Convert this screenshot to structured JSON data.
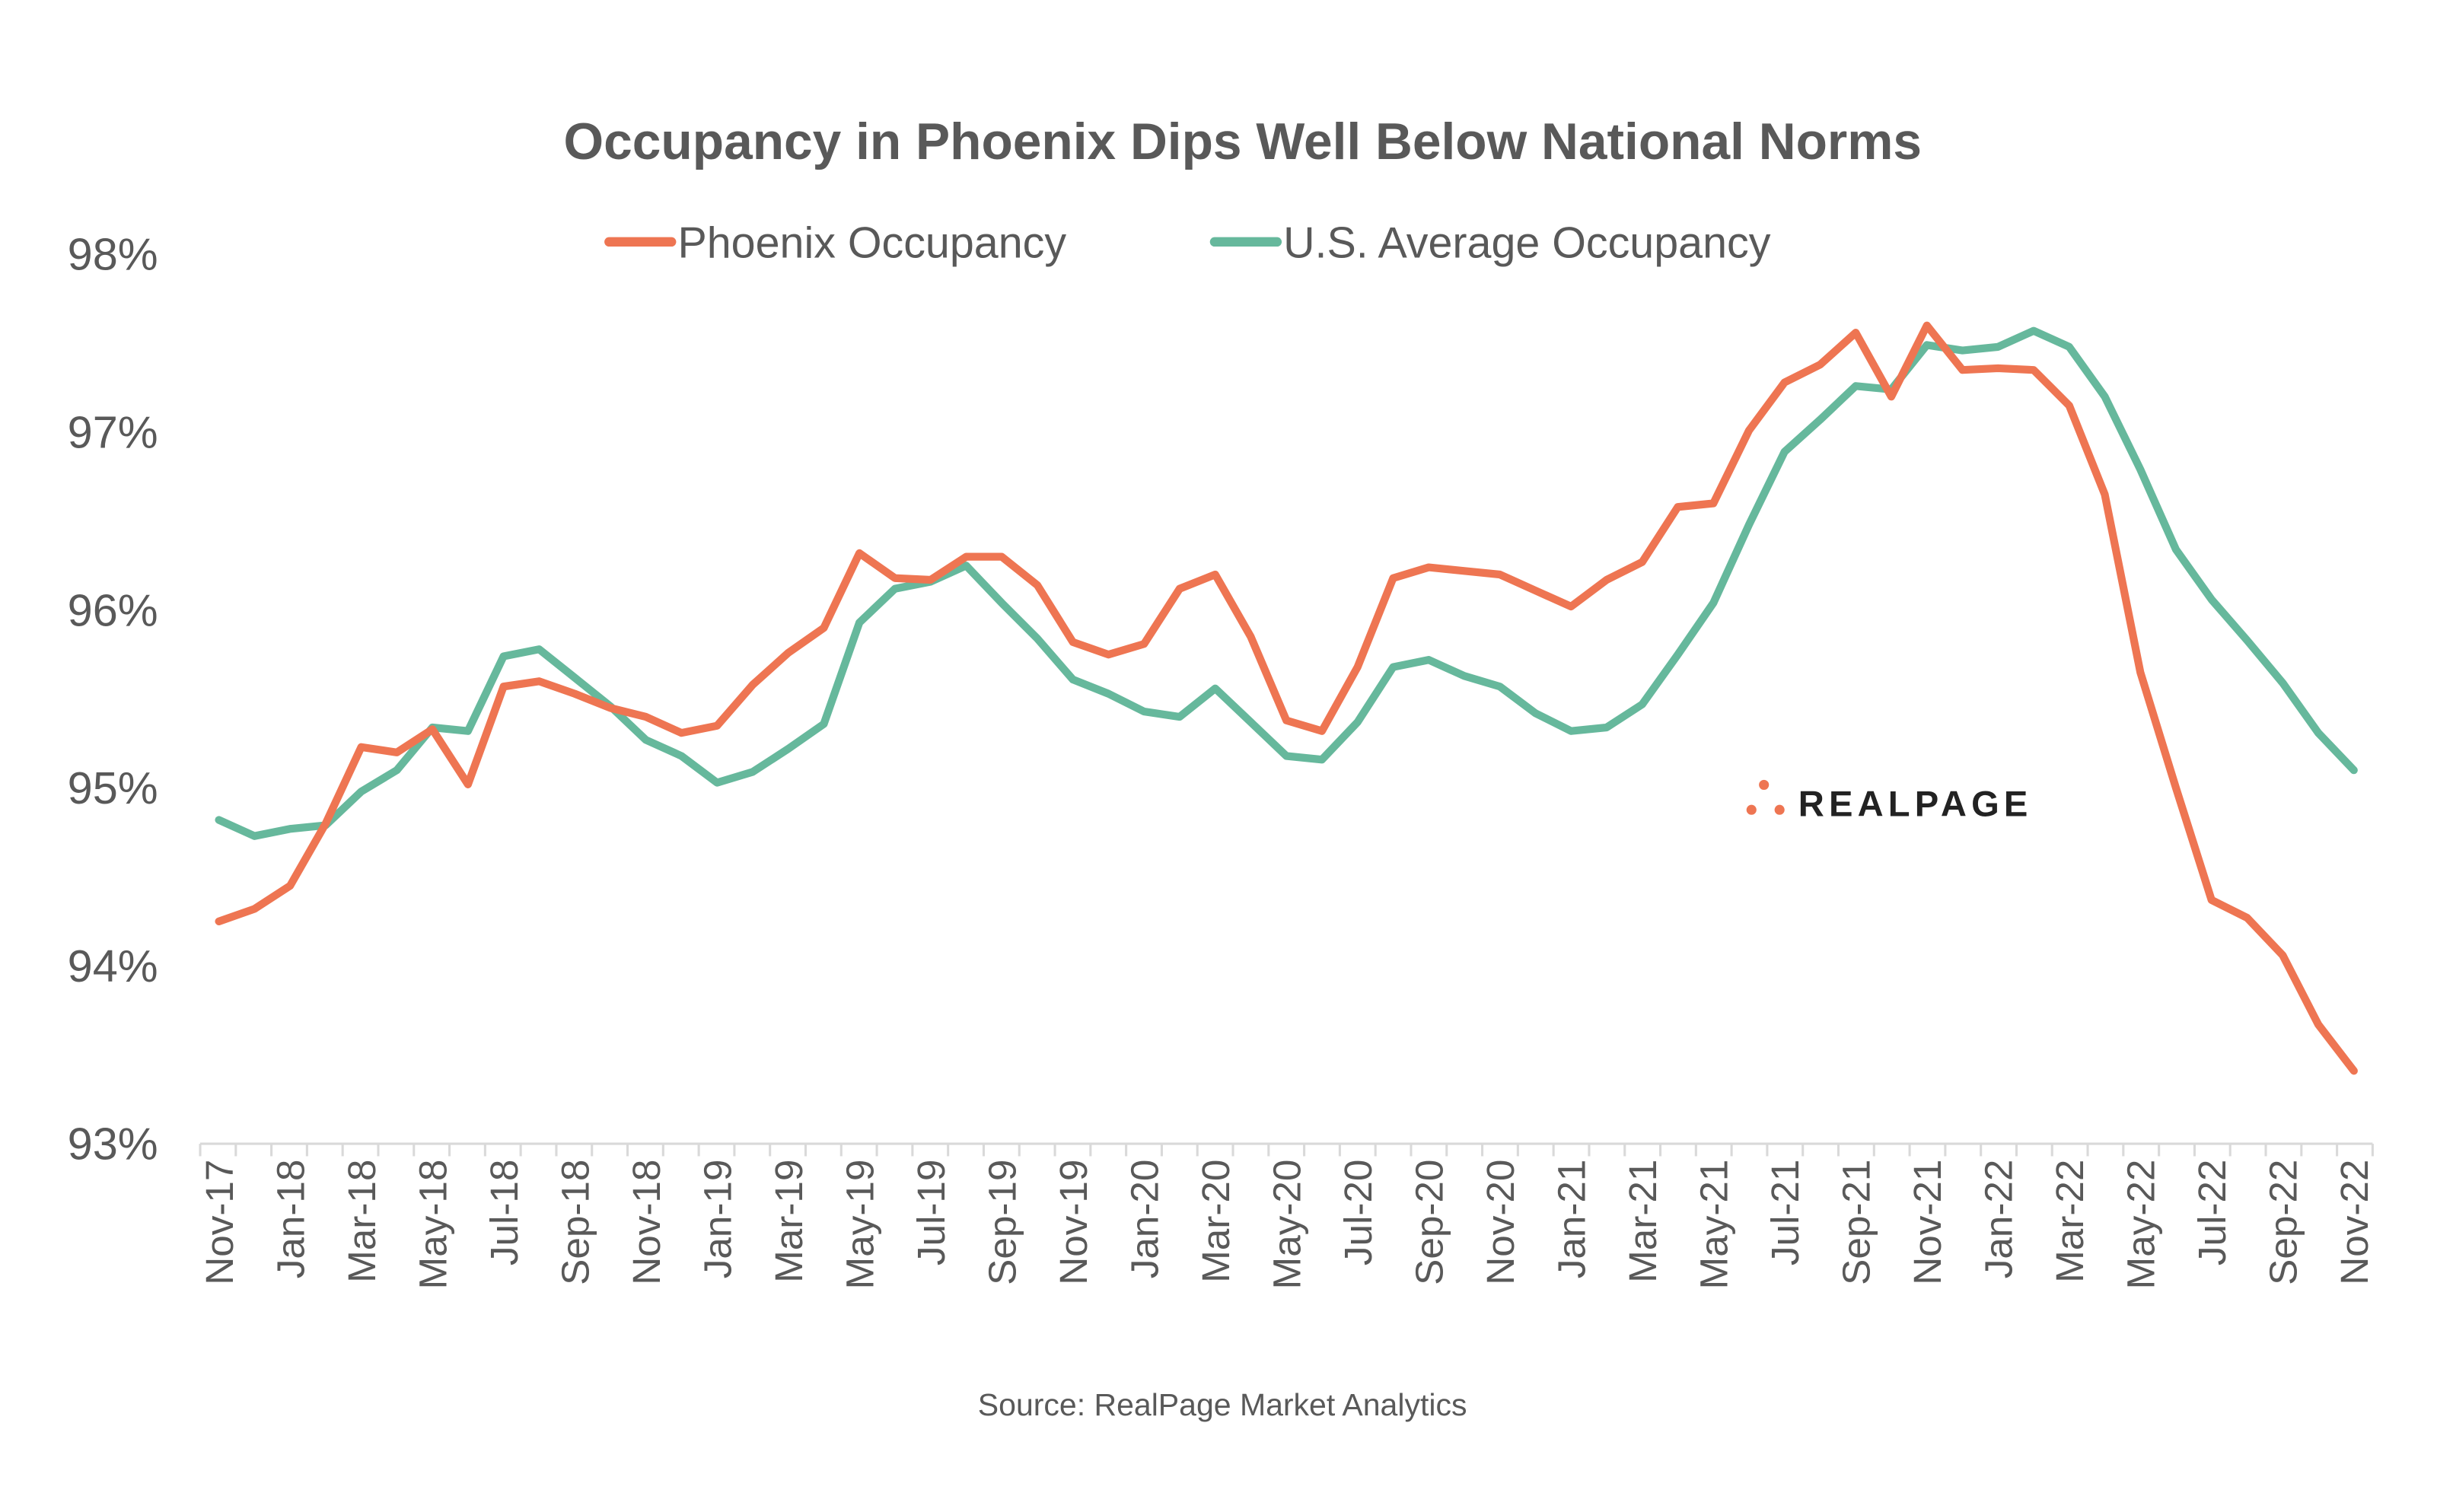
{
  "chart_data": {
    "type": "line",
    "title": "Occupancy in Phoenix Dips Well Below National Norms",
    "source": "Source: RealPage Market Analytics",
    "logo_text": "REALPAGE",
    "xlabel": "",
    "ylabel": "",
    "ylim": [
      93,
      98
    ],
    "yticks": [
      93,
      94,
      95,
      96,
      97,
      98
    ],
    "ytick_labels": [
      "93%",
      "94%",
      "95%",
      "96%",
      "97%",
      "98%"
    ],
    "grid": false,
    "legend_position": "top",
    "categories": [
      "Nov-17",
      "Dec-17",
      "Jan-18",
      "Feb-18",
      "Mar-18",
      "Apr-18",
      "May-18",
      "Jun-18",
      "Jul-18",
      "Aug-18",
      "Sep-18",
      "Oct-18",
      "Nov-18",
      "Dec-18",
      "Jan-19",
      "Feb-19",
      "Mar-19",
      "Apr-19",
      "May-19",
      "Jun-19",
      "Jul-19",
      "Aug-19",
      "Sep-19",
      "Oct-19",
      "Nov-19",
      "Dec-19",
      "Jan-20",
      "Feb-20",
      "Mar-20",
      "Apr-20",
      "May-20",
      "Jun-20",
      "Jul-20",
      "Aug-20",
      "Sep-20",
      "Oct-20",
      "Nov-20",
      "Dec-20",
      "Jan-21",
      "Feb-21",
      "Mar-21",
      "Apr-21",
      "May-21",
      "Jun-21",
      "Jul-21",
      "Aug-21",
      "Sep-21",
      "Oct-21",
      "Nov-21",
      "Dec-21",
      "Jan-22",
      "Feb-22",
      "Mar-22",
      "Apr-22",
      "May-22",
      "Jun-22",
      "Jul-22",
      "Aug-22",
      "Sep-22",
      "Oct-22",
      "Nov-22"
    ],
    "xtick_labels": [
      "Nov-17",
      "Jan-18",
      "Mar-18",
      "May-18",
      "Jul-18",
      "Sep-18",
      "Nov-18",
      "Jan-19",
      "Mar-19",
      "May-19",
      "Jul-19",
      "Sep-19",
      "Nov-19",
      "Jan-20",
      "Mar-20",
      "May-20",
      "Jul-20",
      "Sep-20",
      "Nov-20",
      "Jan-21",
      "Mar-21",
      "May-21",
      "Jul-21",
      "Sep-21",
      "Nov-21",
      "Jan-22",
      "Mar-22",
      "May-22",
      "Jul-22",
      "Sep-22",
      "Nov-22"
    ],
    "series": [
      {
        "name": "Phoenix Occupancy",
        "color": "#EE7552",
        "values": [
          94.25,
          94.32,
          94.45,
          94.8,
          95.23,
          95.2,
          95.33,
          95.02,
          95.57,
          95.6,
          95.53,
          95.45,
          95.4,
          95.31,
          95.35,
          95.58,
          95.76,
          95.9,
          96.32,
          96.18,
          96.17,
          96.3,
          96.3,
          96.14,
          95.82,
          95.75,
          95.81,
          96.12,
          96.2,
          95.85,
          95.38,
          95.32,
          95.68,
          96.18,
          96.24,
          96.22,
          96.2,
          96.11,
          96.02,
          96.17,
          96.27,
          96.58,
          96.6,
          97.01,
          97.28,
          97.38,
          97.56,
          97.2,
          97.6,
          97.35,
          97.36,
          97.35,
          97.15,
          96.65,
          95.65,
          95.0,
          94.37,
          94.27,
          94.06,
          93.67,
          93.41
        ]
      },
      {
        "name": "U.S. Average Occupancy",
        "color": "#66B89C",
        "values": [
          94.82,
          94.73,
          94.77,
          94.79,
          94.98,
          95.1,
          95.34,
          95.32,
          95.74,
          95.78,
          95.62,
          95.46,
          95.27,
          95.18,
          95.03,
          95.09,
          95.22,
          95.36,
          95.93,
          96.12,
          96.16,
          96.25,
          96.04,
          95.84,
          95.61,
          95.53,
          95.43,
          95.4,
          95.56,
          95.37,
          95.18,
          95.16,
          95.37,
          95.68,
          95.72,
          95.63,
          95.57,
          95.42,
          95.32,
          95.34,
          95.47,
          95.75,
          96.04,
          96.48,
          96.89,
          97.07,
          97.26,
          97.24,
          97.49,
          97.46,
          97.48,
          97.57,
          97.48,
          97.2,
          96.79,
          96.34,
          96.06,
          95.83,
          95.59,
          95.31,
          95.1
        ]
      }
    ]
  }
}
